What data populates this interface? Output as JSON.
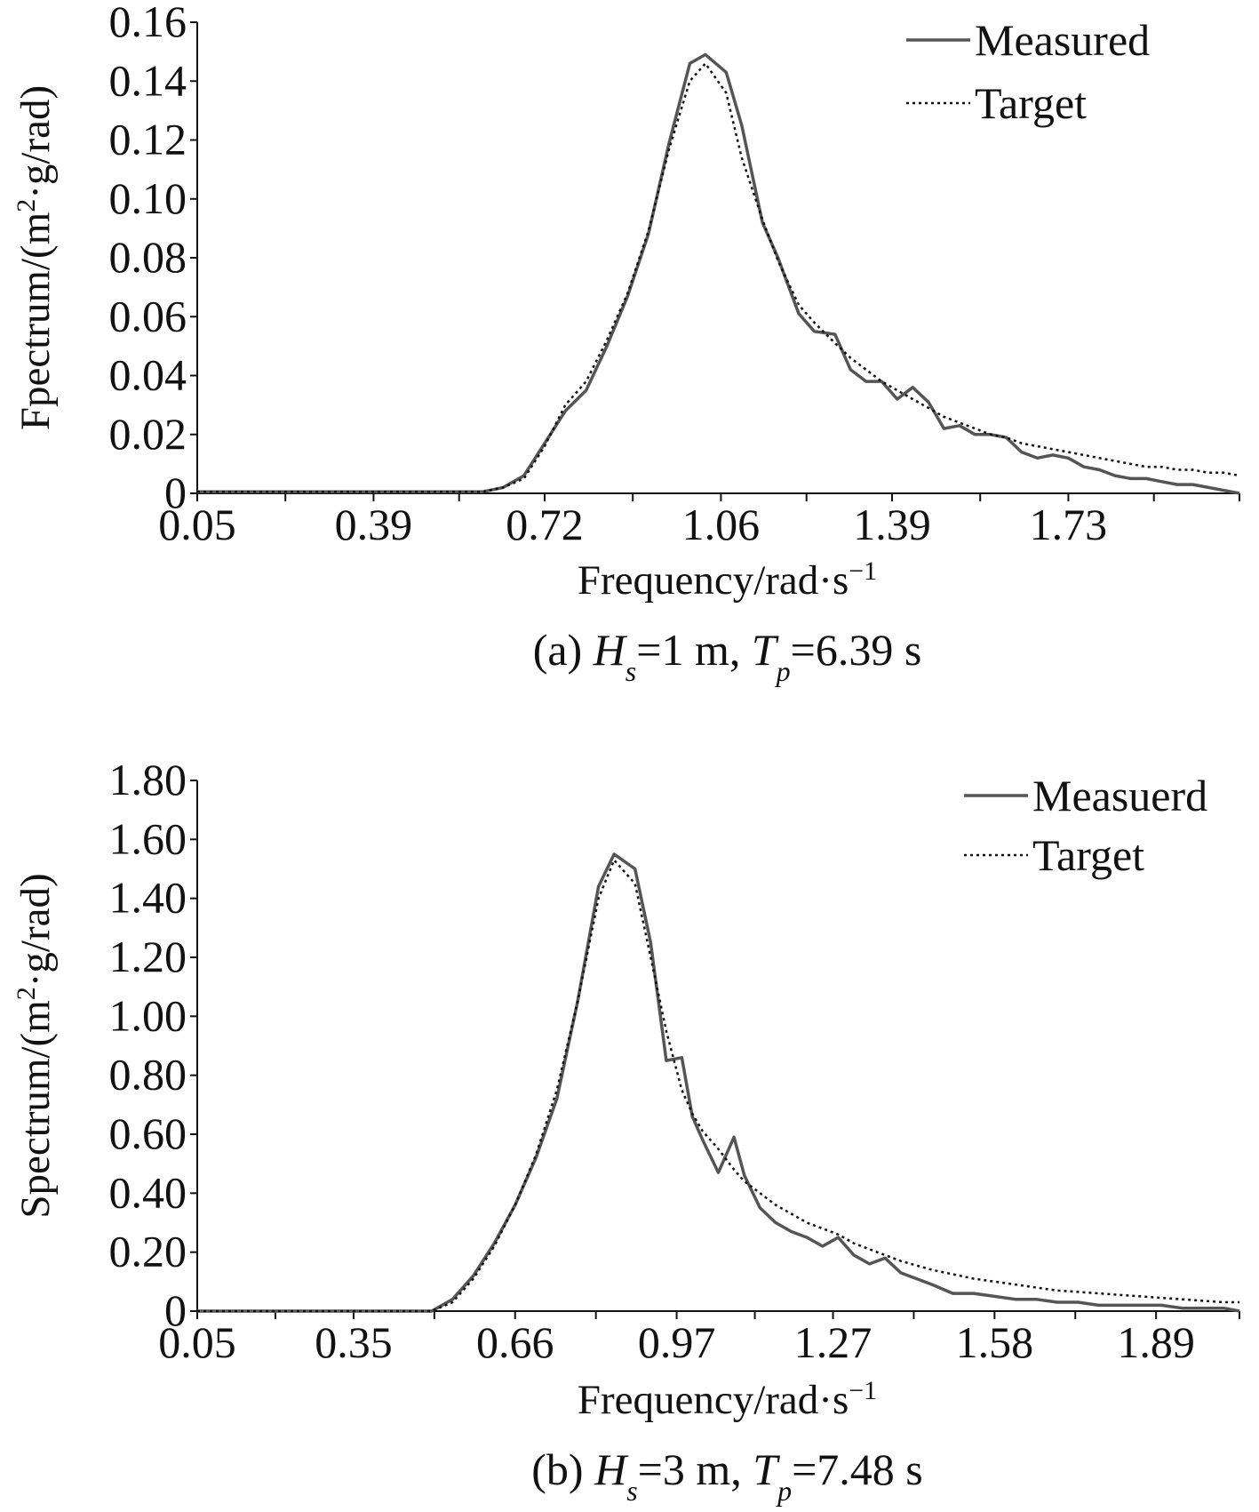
{
  "chart_data": [
    {
      "type": "line",
      "caption": {
        "prefix": "(a) ",
        "h_sym": "H",
        "h_sub": "s",
        "h_val": "=1 m, ",
        "t_sym": "T",
        "t_sub": "p",
        "t_val": "=6.39 s"
      },
      "ylabel": {
        "main": "Fpectrum/(m",
        "sup": "2",
        "rest": "·g/rad)"
      },
      "xlabel": {
        "main": "Frequency/rad·s",
        "sup": "−1"
      },
      "xlim": [
        0.05,
        2.06
      ],
      "ylim": [
        0,
        0.16
      ],
      "xtick_labels": [
        "0.05",
        "0.39",
        "0.72",
        "1.06",
        "1.39",
        "1.73"
      ],
      "xticks": [
        0.05,
        0.39,
        0.72,
        1.06,
        1.39,
        1.73
      ],
      "minor_xticks": [
        0.22,
        0.555,
        0.89,
        1.225,
        1.56,
        1.895
      ],
      "ytick_labels": [
        "0",
        "0.02",
        "0.04",
        "0.06",
        "0.08",
        "0.10",
        "0.12",
        "0.14",
        "0.16"
      ],
      "yticks": [
        0,
        0.02,
        0.04,
        0.06,
        0.08,
        0.1,
        0.12,
        0.14,
        0.16
      ],
      "legend_position": "top-right",
      "series": [
        {
          "name": "Measured",
          "style": "solid",
          "color": "#555555",
          "x": [
            0.05,
            0.6,
            0.64,
            0.68,
            0.72,
            0.76,
            0.8,
            0.84,
            0.88,
            0.92,
            0.96,
            1.0,
            1.03,
            1.07,
            1.1,
            1.14,
            1.17,
            1.21,
            1.24,
            1.28,
            1.31,
            1.34,
            1.37,
            1.4,
            1.43,
            1.46,
            1.49,
            1.52,
            1.55,
            1.58,
            1.61,
            1.64,
            1.67,
            1.7,
            1.73,
            1.76,
            1.79,
            1.82,
            1.85,
            1.88,
            1.91,
            1.94,
            1.97,
            2.0,
            2.03,
            2.06
          ],
          "y": [
            0.0005,
            0.0005,
            0.002,
            0.006,
            0.017,
            0.028,
            0.035,
            0.05,
            0.067,
            0.088,
            0.119,
            0.146,
            0.149,
            0.143,
            0.125,
            0.092,
            0.08,
            0.061,
            0.055,
            0.054,
            0.042,
            0.038,
            0.038,
            0.032,
            0.036,
            0.031,
            0.022,
            0.023,
            0.02,
            0.02,
            0.019,
            0.014,
            0.012,
            0.013,
            0.012,
            0.009,
            0.008,
            0.006,
            0.005,
            0.005,
            0.004,
            0.003,
            0.003,
            0.002,
            0.001,
            0.0
          ]
        },
        {
          "name": "Target",
          "style": "dotted",
          "color": "#111111",
          "x": [
            0.05,
            0.6,
            0.64,
            0.68,
            0.72,
            0.76,
            0.8,
            0.84,
            0.88,
            0.92,
            0.96,
            1.0,
            1.03,
            1.07,
            1.1,
            1.14,
            1.17,
            1.21,
            1.24,
            1.28,
            1.31,
            1.34,
            1.37,
            1.4,
            1.43,
            1.46,
            1.49,
            1.52,
            1.55,
            1.58,
            1.61,
            1.64,
            1.67,
            1.7,
            1.73,
            1.76,
            1.79,
            1.82,
            1.85,
            1.88,
            1.91,
            1.94,
            1.97,
            2.0,
            2.03,
            2.06
          ],
          "y": [
            0.0005,
            0.0005,
            0.002,
            0.005,
            0.016,
            0.03,
            0.038,
            0.052,
            0.068,
            0.089,
            0.117,
            0.14,
            0.146,
            0.136,
            0.114,
            0.093,
            0.079,
            0.064,
            0.058,
            0.051,
            0.046,
            0.042,
            0.038,
            0.035,
            0.032,
            0.029,
            0.026,
            0.024,
            0.022,
            0.02,
            0.019,
            0.017,
            0.016,
            0.015,
            0.014,
            0.013,
            0.012,
            0.011,
            0.01,
            0.009,
            0.009,
            0.008,
            0.008,
            0.007,
            0.007,
            0.006
          ]
        }
      ]
    },
    {
      "type": "line",
      "caption": {
        "prefix": "(b) ",
        "h_sym": "H",
        "h_sub": "s",
        "h_val": "=3 m, ",
        "t_sym": "T",
        "t_sub": "p",
        "t_val": "=7.48 s"
      },
      "ylabel": {
        "main": "Spectrum/(m",
        "sup": "2",
        "rest": "·g/rad)"
      },
      "xlabel": {
        "main": "Frequency/rad·s",
        "sup": "−1"
      },
      "xlim": [
        0.05,
        2.05
      ],
      "ylim": [
        0,
        1.8
      ],
      "xtick_labels": [
        "0.05",
        "0.35",
        "0.66",
        "0.97",
        "1.27",
        "1.58",
        "1.89"
      ],
      "xticks": [
        0.05,
        0.35,
        0.66,
        0.97,
        1.27,
        1.58,
        1.89
      ],
      "minor_xticks": [
        0.2,
        0.505,
        0.815,
        1.12,
        1.425,
        1.735
      ],
      "ytick_labels": [
        "0",
        "0.20",
        "0.40",
        "0.60",
        "0.80",
        "1.00",
        "1.20",
        "1.40",
        "1.60",
        "1.80"
      ],
      "yticks": [
        0,
        0.2,
        0.4,
        0.6,
        0.8,
        1.0,
        1.2,
        1.4,
        1.6,
        1.8
      ],
      "legend_position": "top-right",
      "series": [
        {
          "name": "Measuerd",
          "style": "solid",
          "color": "#555555",
          "x": [
            0.05,
            0.5,
            0.54,
            0.58,
            0.62,
            0.66,
            0.7,
            0.74,
            0.78,
            0.82,
            0.85,
            0.89,
            0.92,
            0.95,
            0.98,
            1.0,
            1.02,
            1.05,
            1.08,
            1.1,
            1.13,
            1.16,
            1.19,
            1.22,
            1.25,
            1.28,
            1.31,
            1.34,
            1.37,
            1.4,
            1.43,
            1.46,
            1.5,
            1.54,
            1.58,
            1.62,
            1.66,
            1.7,
            1.74,
            1.78,
            1.82,
            1.86,
            1.9,
            1.94,
            1.98,
            2.02,
            2.05
          ],
          "y": [
            0.0,
            0.0,
            0.04,
            0.12,
            0.23,
            0.36,
            0.52,
            0.72,
            1.05,
            1.44,
            1.55,
            1.5,
            1.25,
            0.85,
            0.86,
            0.66,
            0.58,
            0.47,
            0.59,
            0.46,
            0.35,
            0.3,
            0.27,
            0.25,
            0.22,
            0.25,
            0.19,
            0.16,
            0.18,
            0.13,
            0.11,
            0.09,
            0.06,
            0.06,
            0.05,
            0.04,
            0.04,
            0.03,
            0.03,
            0.02,
            0.02,
            0.02,
            0.02,
            0.01,
            0.01,
            0.01,
            0.0
          ]
        },
        {
          "name": "Target",
          "style": "dotted",
          "color": "#111111",
          "x": [
            0.05,
            0.5,
            0.54,
            0.58,
            0.62,
            0.66,
            0.7,
            0.74,
            0.78,
            0.82,
            0.85,
            0.89,
            0.92,
            0.95,
            0.98,
            1.0,
            1.02,
            1.05,
            1.08,
            1.1,
            1.13,
            1.16,
            1.19,
            1.22,
            1.25,
            1.28,
            1.31,
            1.34,
            1.37,
            1.4,
            1.43,
            1.46,
            1.5,
            1.54,
            1.58,
            1.62,
            1.66,
            1.7,
            1.74,
            1.78,
            1.82,
            1.86,
            1.9,
            1.94,
            1.98,
            2.02,
            2.05
          ],
          "y": [
            0.0,
            0.0,
            0.03,
            0.11,
            0.22,
            0.36,
            0.53,
            0.75,
            1.05,
            1.4,
            1.53,
            1.45,
            1.2,
            0.95,
            0.75,
            0.67,
            0.61,
            0.55,
            0.48,
            0.44,
            0.4,
            0.36,
            0.33,
            0.3,
            0.28,
            0.26,
            0.23,
            0.21,
            0.19,
            0.17,
            0.155,
            0.14,
            0.125,
            0.11,
            0.1,
            0.09,
            0.08,
            0.07,
            0.065,
            0.06,
            0.055,
            0.05,
            0.045,
            0.04,
            0.035,
            0.03,
            0.03
          ]
        }
      ]
    }
  ]
}
